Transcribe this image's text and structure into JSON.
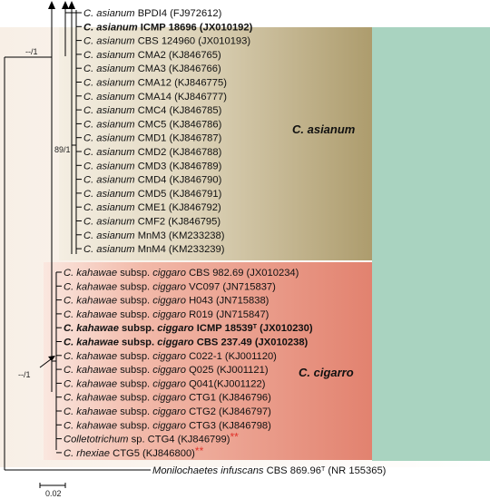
{
  "colors": {
    "band_asianum": "#b3a477",
    "band_cigarro": "#e58a78",
    "band_outer": "#f7eee6",
    "band_green": "#a8d2bf",
    "branch": "#000000",
    "asterisk": "#e0322a"
  },
  "clades": {
    "asianum": "C. asianum",
    "cigarro": "C. cigarro"
  },
  "support": {
    "outer": "--/1",
    "asianum_node": "89/1",
    "cigarro_node": "--/1"
  },
  "scale_bar": {
    "label": "0.02"
  },
  "asianum_taxa": [
    {
      "italic": "C. asianum",
      "rest": "BPDI4 (FJ972612)",
      "bold": false
    },
    {
      "italic": "C. asianum",
      "rest": "ICMP 18696 (JX010192)",
      "bold": true
    },
    {
      "italic": "C. asianum",
      "rest": "CBS 124960 (JX010193)",
      "bold": false
    },
    {
      "italic": "C. asianum",
      "rest": "CMA2 (KJ846765)",
      "bold": false
    },
    {
      "italic": "C. asianum",
      "rest": "CMA3 (KJ846766)",
      "bold": false
    },
    {
      "italic": "C. asianum",
      "rest": "CMA12 (KJ846775)",
      "bold": false
    },
    {
      "italic": "C. asianum",
      "rest": "CMA14 (KJ846777)",
      "bold": false
    },
    {
      "italic": "C. asianum",
      "rest": "CMC4 (KJ846785)",
      "bold": false
    },
    {
      "italic": "C. asianum",
      "rest": "CMC5 (KJ846786)",
      "bold": false
    },
    {
      "italic": "C. asianum",
      "rest": "CMD1 (KJ846787)",
      "bold": false
    },
    {
      "italic": "C. asianum",
      "rest": "CMD2 (KJ846788)",
      "bold": false
    },
    {
      "italic": "C. asianum",
      "rest": "CMD3 (KJ846789)",
      "bold": false
    },
    {
      "italic": "C. asianum",
      "rest": "CMD4 (KJ846790)",
      "bold": false
    },
    {
      "italic": "C. asianum",
      "rest": "CMD5 (KJ846791)",
      "bold": false
    },
    {
      "italic": "C. asianum",
      "rest": "CME1 (KJ846792)",
      "bold": false
    },
    {
      "italic": "C. asianum",
      "rest": "CMF2 (KJ846795)",
      "bold": false
    },
    {
      "italic": "C. asianum",
      "rest": "MnM3 (KM233238)",
      "bold": false
    },
    {
      "italic": "C. asianum",
      "rest": "MnM4 (KM233239)",
      "bold": false
    }
  ],
  "cigarro_taxa": [
    {
      "segments": [
        [
          "i",
          "C. kahawae"
        ],
        [
          "n",
          " subsp. "
        ],
        [
          "i",
          "ciggaro"
        ],
        [
          "n",
          " CBS 982.69 (JX010234)"
        ]
      ],
      "bold": false
    },
    {
      "segments": [
        [
          "i",
          "C. kahawae"
        ],
        [
          "n",
          " subsp. "
        ],
        [
          "i",
          "ciggaro"
        ],
        [
          "n",
          " VC097 (JN715837)"
        ]
      ],
      "bold": false
    },
    {
      "segments": [
        [
          "i",
          "C. kahawae"
        ],
        [
          "n",
          " subsp. "
        ],
        [
          "i",
          "ciggaro"
        ],
        [
          "n",
          " H043 (JN715838)"
        ]
      ],
      "bold": false
    },
    {
      "segments": [
        [
          "i",
          "C. kahawae"
        ],
        [
          "n",
          " subsp. "
        ],
        [
          "i",
          "ciggaro"
        ],
        [
          "n",
          " R019 (JN715847)"
        ]
      ],
      "bold": false
    },
    {
      "segments": [
        [
          "i",
          "C. kahawae"
        ],
        [
          "n",
          " subsp. "
        ],
        [
          "i",
          "ciggaro"
        ],
        [
          "n",
          " ICMP 18539"
        ],
        [
          "s",
          "T"
        ],
        [
          "n",
          " (JX010230)"
        ]
      ],
      "bold": true
    },
    {
      "segments": [
        [
          "i",
          "C. kahawae"
        ],
        [
          "n",
          " subsp. "
        ],
        [
          "i",
          "ciggaro"
        ],
        [
          "n",
          " CBS 237.49 (JX010238)"
        ]
      ],
      "bold": true
    },
    {
      "segments": [
        [
          "i",
          "C. kahawae"
        ],
        [
          "n",
          " subsp. "
        ],
        [
          "i",
          "ciggaro"
        ],
        [
          "n",
          " C022-1 (KJ001120)"
        ]
      ],
      "bold": false
    },
    {
      "segments": [
        [
          "i",
          "C. kahawae"
        ],
        [
          "n",
          " subsp. "
        ],
        [
          "i",
          "ciggaro"
        ],
        [
          "n",
          " Q025 (KJ001121)"
        ]
      ],
      "bold": false
    },
    {
      "segments": [
        [
          "i",
          "C. kahawae"
        ],
        [
          "n",
          " subsp. "
        ],
        [
          "i",
          "ciggaro"
        ],
        [
          "n",
          " Q041(KJ001122)"
        ]
      ],
      "bold": false
    },
    {
      "segments": [
        [
          "i",
          "C. kahawae"
        ],
        [
          "n",
          " subsp. "
        ],
        [
          "i",
          "ciggaro"
        ],
        [
          "n",
          " CTG1 (KJ846796)"
        ]
      ],
      "bold": false
    },
    {
      "segments": [
        [
          "i",
          "C. kahawae"
        ],
        [
          "n",
          " subsp. "
        ],
        [
          "i",
          "ciggaro"
        ],
        [
          "n",
          " CTG2 (KJ846797)"
        ]
      ],
      "bold": false
    },
    {
      "segments": [
        [
          "i",
          "C. kahawae"
        ],
        [
          "n",
          " subsp. "
        ],
        [
          "i",
          "ciggaro"
        ],
        [
          "n",
          " CTG3 (KJ846798)"
        ]
      ],
      "bold": false
    },
    {
      "segments": [
        [
          "i",
          "Colletotrichum"
        ],
        [
          "n",
          " sp. CTG4 (KJ846799)"
        ],
        [
          "r",
          "**"
        ]
      ],
      "bold": false
    },
    {
      "segments": [
        [
          "i",
          "C. rhexiae"
        ],
        [
          "n",
          " CTG5 (KJ846800)"
        ],
        [
          "r",
          "**"
        ]
      ],
      "bold": false
    }
  ],
  "outgroup": {
    "segments": [
      [
        "i",
        "Monilochaetes infuscans"
      ],
      [
        "n",
        " CBS 869.96"
      ],
      [
        "s",
        "T"
      ],
      [
        "n",
        " (NR 155365)"
      ]
    ]
  }
}
